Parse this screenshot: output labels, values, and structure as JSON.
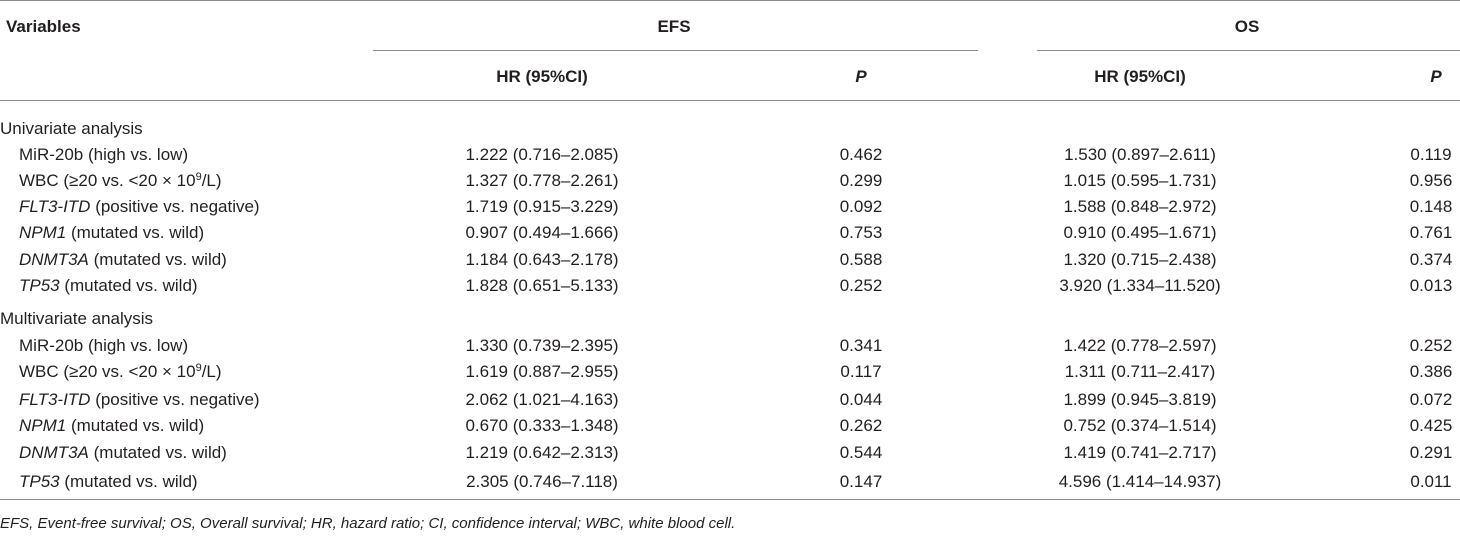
{
  "header": {
    "variables": "Variables",
    "efs": "EFS",
    "os": "OS",
    "hr_efs": "HR (95%CI)",
    "p_efs": "P",
    "hr_os": "HR (95%CI)",
    "p_os": "P"
  },
  "sections": [
    {
      "title": "Univariate analysis",
      "rows": [
        {
          "gene": "",
          "label": "MiR-20b (high vs. low)",
          "sup": "",
          "label_after": "",
          "efs_hr": "1.222 (0.716–2.085)",
          "efs_p": "0.462",
          "os_hr": "1.530 (0.897–2.611)",
          "os_p": "0.119"
        },
        {
          "gene": "",
          "label": "WBC (≥20 vs. <20 × 10",
          "sup": "9",
          "label_after": "/L)",
          "efs_hr": "1.327 (0.778–2.261)",
          "efs_p": "0.299",
          "os_hr": "1.015 (0.595–1.731)",
          "os_p": "0.956"
        },
        {
          "gene": "FLT3-ITD",
          "label": " (positive vs. negative)",
          "sup": "",
          "label_after": "",
          "efs_hr": "1.719 (0.915–3.229)",
          "efs_p": "0.092",
          "os_hr": "1.588 (0.848–2.972)",
          "os_p": "0.148"
        },
        {
          "gene": "NPM1",
          "label": " (mutated vs. wild)",
          "sup": "",
          "label_after": "",
          "efs_hr": "0.907 (0.494–1.666)",
          "efs_p": "0.753",
          "os_hr": "0.910 (0.495–1.671)",
          "os_p": "0.761"
        },
        {
          "gene": "DNMT3A",
          "label": " (mutated vs. wild)",
          "sup": "",
          "label_after": "",
          "efs_hr": "1.184 (0.643–2.178)",
          "efs_p": "0.588",
          "os_hr": "1.320 (0.715–2.438)",
          "os_p": "0.374"
        },
        {
          "gene": "TP53",
          "label": " (mutated vs. wild)",
          "sup": "",
          "label_after": "",
          "efs_hr": "1.828 (0.651–5.133)",
          "efs_p": "0.252",
          "os_hr": "3.920 (1.334–11.520)",
          "os_p": "0.013"
        }
      ]
    },
    {
      "title": "Multivariate analysis",
      "rows": [
        {
          "gene": "",
          "label": "MiR-20b (high vs. low)",
          "sup": "",
          "label_after": "",
          "efs_hr": "1.330 (0.739–2.395)",
          "efs_p": "0.341",
          "os_hr": "1.422 (0.778–2.597)",
          "os_p": "0.252"
        },
        {
          "gene": "",
          "label": "WBC (≥20 vs. <20 × 10",
          "sup": "9",
          "label_after": "/L)",
          "efs_hr": "1.619 (0.887–2.955)",
          "efs_p": "0.117",
          "os_hr": "1.311 (0.711–2.417)",
          "os_p": "0.386"
        },
        {
          "gene": "FLT3-ITD",
          "label": " (positive vs. negative)",
          "sup": "",
          "label_after": "",
          "efs_hr": "2.062 (1.021–4.163)",
          "efs_p": "0.044",
          "os_hr": "1.899 (0.945–3.819)",
          "os_p": "0.072"
        },
        {
          "gene": "NPM1",
          "label": " (mutated vs. wild)",
          "sup": "",
          "label_after": "",
          "efs_hr": "0.670 (0.333–1.348)",
          "efs_p": "0.262",
          "os_hr": "0.752 (0.374–1.514)",
          "os_p": "0.425"
        },
        {
          "gene": "DNMT3A",
          "label": " (mutated vs. wild)",
          "sup": "",
          "label_after": "",
          "efs_hr": "1.219 (0.642–2.313)",
          "efs_p": "0.544",
          "os_hr": "1.419 (0.741–2.717)",
          "os_p": "0.291"
        },
        {
          "gene": "TP53",
          "label": " (mutated vs. wild)",
          "sup": "",
          "label_after": "",
          "efs_hr": "2.305 (0.746–7.118)",
          "efs_p": "0.147",
          "os_hr": "4.596 (1.414–14.937)",
          "os_p": "0.011"
        }
      ]
    }
  ],
  "footnote": "EFS, Event-free survival; OS, Overall survival; HR, hazard ratio; CI, confidence interval; WBC, white blood cell."
}
